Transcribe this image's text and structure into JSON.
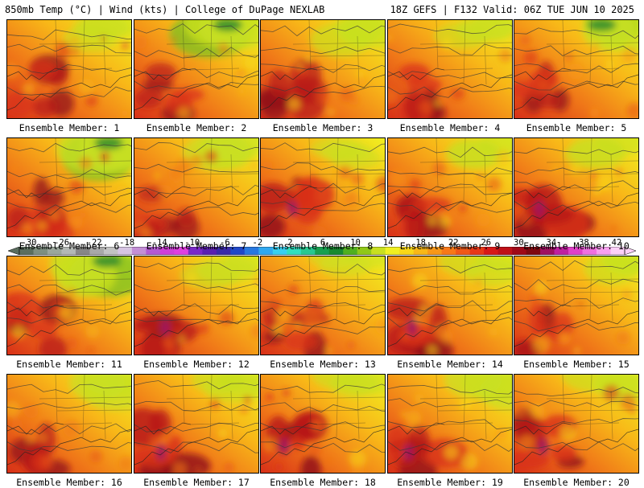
{
  "header": {
    "left": "850mb Temp (°C) | Wind (kts) | College of DuPage NEXLAB",
    "right": "18Z GEFS | F132 Valid: 06Z TUE JUN 10 2025"
  },
  "members": [
    {
      "label": "Ensemble Member: 1",
      "heat": 0.55,
      "cool": 0.15
    },
    {
      "label": "Ensemble Member: 2",
      "heat": 0.5,
      "cool": 0.55
    },
    {
      "label": "Ensemble Member: 3",
      "heat": 0.55,
      "cool": 0.3
    },
    {
      "label": "Ensemble Member: 4",
      "heat": 0.6,
      "cool": 0.15
    },
    {
      "label": "Ensemble Member: 5",
      "heat": 0.5,
      "cool": 0.45
    },
    {
      "label": "Ensemble Member: 6",
      "heat": 0.55,
      "cool": 0.6
    },
    {
      "label": "Ensemble Member: 7",
      "heat": 0.4,
      "cool": 0.35
    },
    {
      "label": "Ensemble Member: 8",
      "heat": 0.7,
      "cool": 0.05
    },
    {
      "label": "Ensemble Member: 9",
      "heat": 0.6,
      "cool": 0.2
    },
    {
      "label": "Ensemble Member: 10",
      "heat": 0.75,
      "cool": 0.2
    },
    {
      "label": "Ensemble Member: 11",
      "heat": 0.6,
      "cool": 0.55
    },
    {
      "label": "Ensemble Member: 12",
      "heat": 0.7,
      "cool": 0.15
    },
    {
      "label": "Ensemble Member: 13",
      "heat": 0.55,
      "cool": 0.05
    },
    {
      "label": "Ensemble Member: 14",
      "heat": 0.65,
      "cool": 0.15
    },
    {
      "label": "Ensemble Member: 15",
      "heat": 0.55,
      "cool": 0.25
    },
    {
      "label": "Ensemble Member: 16",
      "heat": 0.55,
      "cool": 0.35
    },
    {
      "label": "Ensemble Member: 17",
      "heat": 0.7,
      "cool": 0.2
    },
    {
      "label": "Ensemble Member: 18",
      "heat": 0.75,
      "cool": 0.15
    },
    {
      "label": "Ensemble Member: 19",
      "heat": 0.65,
      "cool": 0.35
    },
    {
      "label": "Ensemble Member: 20",
      "heat": 0.7,
      "cool": 0.25
    }
  ],
  "colorbar": {
    "ticks": [
      "-30",
      "-26",
      "-22",
      "-18",
      "-14",
      "-10",
      "-6",
      "-2",
      "2",
      "6",
      "10",
      "14",
      "18",
      "22",
      "26",
      "30",
      "34",
      "38",
      "42"
    ],
    "colors": [
      "#5a6e5e",
      "#7d8f80",
      "#9aa79c",
      "#b3b8b5",
      "#878787",
      "#a8a8a8",
      "#c3c3c3",
      "#d7c5e3",
      "#c48fd6",
      "#b45ad2",
      "#d040d8",
      "#e040e0",
      "#7a28c8",
      "#5a20b0",
      "#3a2aa8",
      "#2048c8",
      "#2878e0",
      "#30a8f0",
      "#38d0f0",
      "#30e0c0",
      "#28c890",
      "#18a050",
      "#188a30",
      "#50b020",
      "#90c818",
      "#c8e020",
      "#f0f020",
      "#f8d818",
      "#f8b818",
      "#f89818",
      "#f87818",
      "#f05818",
      "#e83818",
      "#d81818",
      "#c01018",
      "#a00818",
      "#800810",
      "#a01060",
      "#c020a0",
      "#e040c8",
      "#f070e0",
      "#f8a0f0",
      "#fcd0f8"
    ],
    "palette": [
      "#2e8b2e",
      "#7fbf1f",
      "#c8e020",
      "#f0f020",
      "#f8d818",
      "#f8b818",
      "#f89818",
      "#f07818",
      "#e85818",
      "#d83018",
      "#b81818",
      "#901018",
      "#a01860"
    ]
  }
}
